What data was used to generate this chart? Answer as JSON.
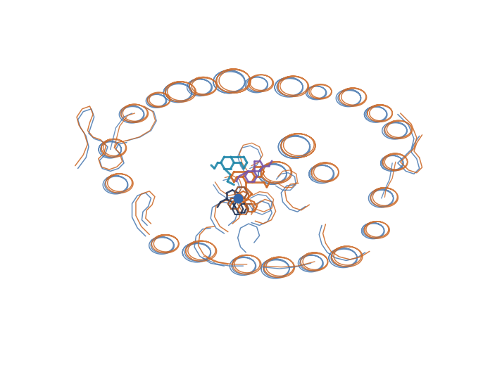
{
  "background_color": "#ffffff",
  "blue_color": "#4878b0",
  "orange_color": "#cc6622",
  "teal_color": "#2288aa",
  "purple_color": "#7755aa",
  "heme_color": "#3366aa",
  "dark_color": "#223355",
  "figsize": [
    6.86,
    5.46
  ],
  "dpi": 100,
  "lw_backbone": 1.1,
  "lw_ligand": 1.8,
  "alpha_backbone": 0.85
}
